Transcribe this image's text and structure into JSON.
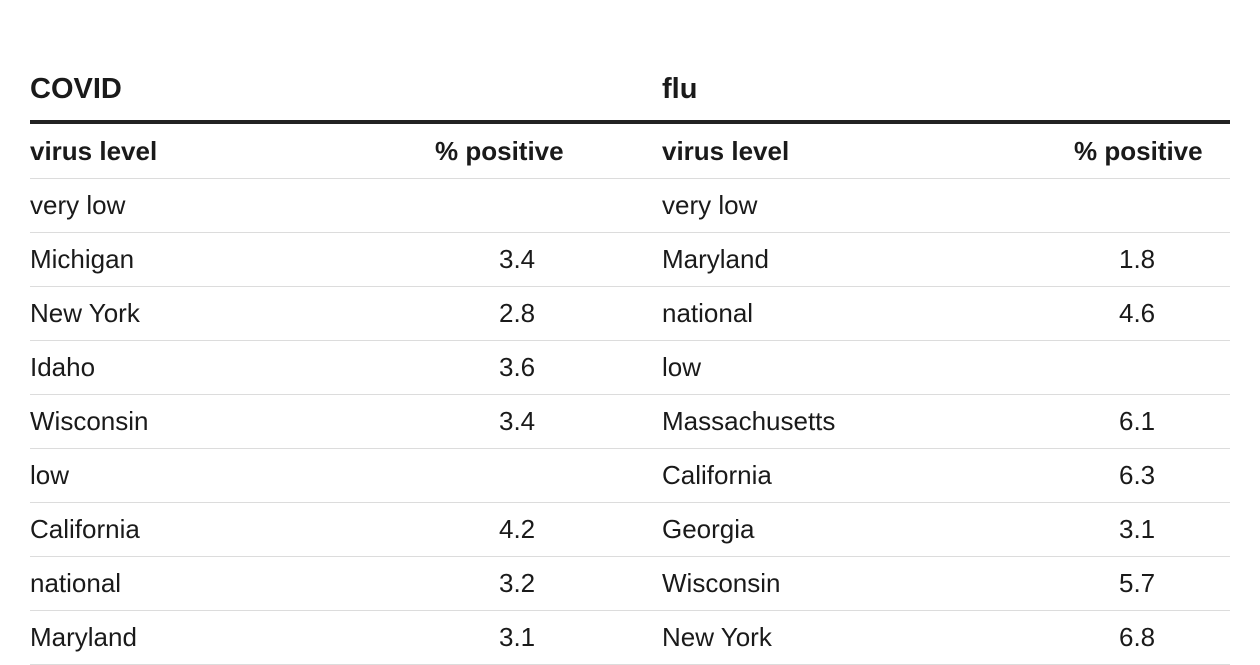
{
  "groups": {
    "covid": "COVID",
    "flu": "flu"
  },
  "columns": {
    "level": "virus level",
    "pct": "% positive"
  },
  "rows": [
    {
      "covid_name": "very low",
      "covid_pct": "",
      "flu_name": "very low",
      "flu_pct": ""
    },
    {
      "covid_name": "Michigan",
      "covid_pct": "3.4",
      "flu_name": "Maryland",
      "flu_pct": "1.8"
    },
    {
      "covid_name": "New York",
      "covid_pct": "2.8",
      "flu_name": "national",
      "flu_pct": "4.6"
    },
    {
      "covid_name": "Idaho",
      "covid_pct": "3.6",
      "flu_name": "low",
      "flu_pct": ""
    },
    {
      "covid_name": "Wisconsin",
      "covid_pct": "3.4",
      "flu_name": "Massachusetts",
      "flu_pct": "6.1"
    },
    {
      "covid_name": "low",
      "covid_pct": "",
      "flu_name": "California",
      "flu_pct": "6.3"
    },
    {
      "covid_name": "California",
      "covid_pct": "4.2",
      "flu_name": "Georgia",
      "flu_pct": "3.1"
    },
    {
      "covid_name": "national",
      "covid_pct": "3.2",
      "flu_name": "Wisconsin",
      "flu_pct": "5.7"
    },
    {
      "covid_name": "Maryland",
      "covid_pct": "3.1",
      "flu_name": "New York",
      "flu_pct": "6.8"
    }
  ]
}
